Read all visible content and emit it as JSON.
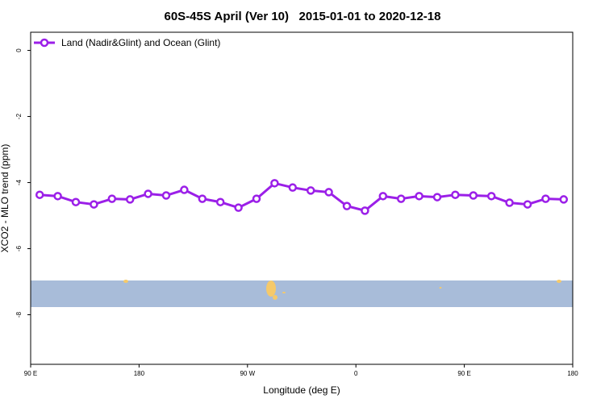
{
  "chart_data": {
    "type": "line",
    "title": "60S-45S April (Ver 10)   2015-01-01 to 2020-12-18",
    "x_label": "Longitude (deg E)",
    "y_label": "XCO2 - MLO trend (ppm)",
    "xlim": [
      90,
      540
    ],
    "xticks": [
      {
        "value": 90,
        "label": "90 E"
      },
      {
        "value": 180,
        "label": "180"
      },
      {
        "value": 270,
        "label": "90 W"
      },
      {
        "value": 360,
        "label": "0"
      },
      {
        "value": 450,
        "label": "90 E"
      },
      {
        "value": 540,
        "label": "180"
      }
    ],
    "ylim": [
      -9.5,
      0.55
    ],
    "yticks": [
      0,
      -2,
      -4,
      -6,
      -8
    ],
    "legend": "top-left",
    "x": [
      97.5,
      112.5,
      127.5,
      142.5,
      157.5,
      172.5,
      187.5,
      202.5,
      217.5,
      232.5,
      247.5,
      262.5,
      277.5,
      292.5,
      307.5,
      322.5,
      337.5,
      352.5,
      367.5,
      382.5,
      397.5,
      412.5,
      427.5,
      442.5,
      457.5,
      472.5,
      487.5,
      502.5,
      517.5,
      532.5
    ],
    "series": [
      {
        "name": "Land (Nadir&Glint) and Ocean (Glint)",
        "color": "#9b1fe8",
        "values": [
          -4.37,
          -4.41,
          -4.59,
          -4.66,
          -4.49,
          -4.51,
          -4.34,
          -4.39,
          -4.22,
          -4.49,
          -4.59,
          -4.76,
          -4.49,
          -4.02,
          -4.15,
          -4.24,
          -4.29,
          -4.71,
          -4.85,
          -4.41,
          -4.49,
          -4.41,
          -4.44,
          -4.37,
          -4.39,
          -4.41,
          -4.61,
          -4.66,
          -4.49,
          -4.51
        ]
      }
    ]
  }
}
